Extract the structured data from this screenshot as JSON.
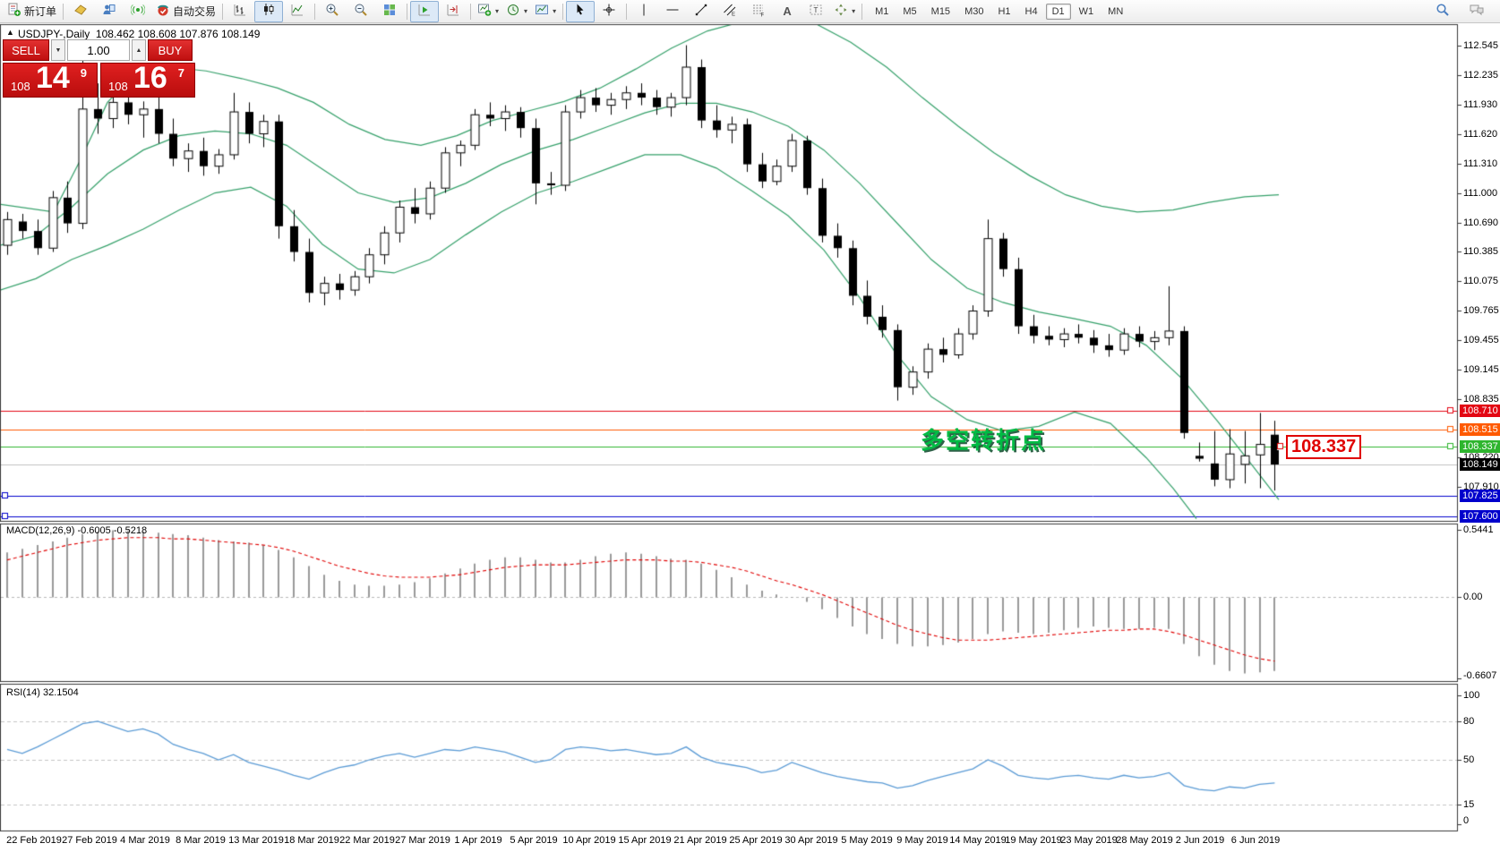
{
  "toolbar": {
    "new_order_label": "新订单",
    "autotrading_label": "自动交易",
    "timeframes": [
      "M1",
      "M5",
      "M15",
      "M30",
      "H1",
      "H4",
      "D1",
      "W1",
      "MN"
    ],
    "active_timeframe": "D1"
  },
  "chart": {
    "collapse_arrow": "▲",
    "symbol_title": "USDJPY-,Daily",
    "ohlc_values": "108.462 108.608 107.876 108.149",
    "trade_panel": {
      "sell_label": "SELL",
      "buy_label": "BUY",
      "volume": "1.00",
      "sell_small": "108",
      "sell_big": "14",
      "sell_sup": "9",
      "buy_small": "108",
      "buy_big": "16",
      "buy_sup": "7"
    },
    "annotation_text": "多空转折点",
    "annotation_color": "#00bb44",
    "callout_text": "108.337",
    "callout_color": "#e00000",
    "axis_ticks": [
      "112.545",
      "112.235",
      "111.930",
      "111.620",
      "111.310",
      "111.000",
      "110.690",
      "110.385",
      "110.075",
      "109.765",
      "109.455",
      "109.145",
      "108.835",
      "108.220",
      "107.910"
    ],
    "price_badges": [
      {
        "text": "108.710",
        "bg": "#e30613"
      },
      {
        "text": "108.515",
        "bg": "#ff5a00"
      },
      {
        "text": "108.337",
        "bg": "#2eb52e"
      },
      {
        "text": "108.149",
        "bg": "#000000"
      },
      {
        "text": "107.825",
        "bg": "#0000cc"
      },
      {
        "text": "107.600",
        "bg": "#0000cc"
      }
    ],
    "hlines": [
      {
        "price": 108.71,
        "color": "#e30613",
        "handle": "right"
      },
      {
        "price": 108.515,
        "color": "#ff5a00",
        "handle": "right"
      },
      {
        "price": 108.337,
        "color": "#2eb52e",
        "handle": "right"
      },
      {
        "price": 108.149,
        "color": "#c0c0c0",
        "handle": "none"
      },
      {
        "price": 107.825,
        "color": "#0000cc",
        "handle": "left"
      },
      {
        "price": 107.6,
        "color": "#0000cc",
        "handle": "left"
      }
    ],
    "bollinger_color": "#35a06a",
    "bands": {
      "upper": [
        [
          0,
          110.88
        ],
        [
          60,
          110.8
        ],
        [
          90,
          111.35
        ],
        [
          120,
          111.95
        ],
        [
          150,
          112.25
        ],
        [
          190,
          112.32
        ],
        [
          230,
          112.28
        ],
        [
          270,
          112.2
        ],
        [
          310,
          112.1
        ],
        [
          350,
          111.95
        ],
        [
          390,
          111.72
        ],
        [
          430,
          111.56
        ],
        [
          470,
          111.5
        ],
        [
          510,
          111.6
        ],
        [
          550,
          111.76
        ],
        [
          590,
          111.86
        ],
        [
          630,
          111.96
        ],
        [
          670,
          112.1
        ],
        [
          710,
          112.3
        ],
        [
          750,
          112.52
        ],
        [
          790,
          112.7
        ],
        [
          830,
          112.8
        ],
        [
          870,
          112.86
        ],
        [
          910,
          112.78
        ],
        [
          950,
          112.58
        ],
        [
          990,
          112.32
        ],
        [
          1030,
          112.0
        ],
        [
          1070,
          111.7
        ],
        [
          1110,
          111.42
        ],
        [
          1150,
          111.18
        ],
        [
          1190,
          110.98
        ],
        [
          1230,
          110.86
        ],
        [
          1270,
          110.8
        ],
        [
          1310,
          110.82
        ],
        [
          1350,
          110.9
        ],
        [
          1390,
          110.96
        ],
        [
          1428,
          110.98
        ]
      ],
      "middle": [
        [
          0,
          110.45
        ],
        [
          40,
          110.55
        ],
        [
          80,
          110.85
        ],
        [
          120,
          111.2
        ],
        [
          160,
          111.45
        ],
        [
          200,
          111.6
        ],
        [
          240,
          111.65
        ],
        [
          280,
          111.62
        ],
        [
          320,
          111.5
        ],
        [
          360,
          111.25
        ],
        [
          400,
          111.0
        ],
        [
          440,
          110.9
        ],
        [
          480,
          110.95
        ],
        [
          520,
          111.1
        ],
        [
          560,
          111.3
        ],
        [
          600,
          111.45
        ],
        [
          640,
          111.56
        ],
        [
          680,
          111.7
        ],
        [
          720,
          111.84
        ],
        [
          760,
          111.94
        ],
        [
          800,
          111.94
        ],
        [
          840,
          111.85
        ],
        [
          880,
          111.7
        ],
        [
          920,
          111.45
        ],
        [
          960,
          111.1
        ],
        [
          1000,
          110.7
        ],
        [
          1040,
          110.3
        ],
        [
          1080,
          110.0
        ],
        [
          1120,
          109.85
        ],
        [
          1160,
          109.75
        ],
        [
          1200,
          109.68
        ],
        [
          1240,
          109.6
        ],
        [
          1280,
          109.4
        ],
        [
          1320,
          109.05
        ],
        [
          1360,
          108.6
        ],
        [
          1400,
          108.12
        ],
        [
          1428,
          107.78
        ]
      ],
      "lower": [
        [
          0,
          109.98
        ],
        [
          40,
          110.1
        ],
        [
          80,
          110.3
        ],
        [
          120,
          110.45
        ],
        [
          160,
          110.62
        ],
        [
          200,
          110.82
        ],
        [
          240,
          111.0
        ],
        [
          280,
          111.06
        ],
        [
          320,
          110.86
        ],
        [
          360,
          110.46
        ],
        [
          400,
          110.2
        ],
        [
          440,
          110.16
        ],
        [
          480,
          110.3
        ],
        [
          520,
          110.56
        ],
        [
          560,
          110.8
        ],
        [
          600,
          111.0
        ],
        [
          640,
          111.12
        ],
        [
          680,
          111.26
        ],
        [
          720,
          111.4
        ],
        [
          760,
          111.4
        ],
        [
          800,
          111.26
        ],
        [
          840,
          111.02
        ],
        [
          880,
          110.76
        ],
        [
          920,
          110.4
        ],
        [
          960,
          109.9
        ],
        [
          1000,
          109.32
        ],
        [
          1040,
          108.86
        ],
        [
          1080,
          108.62
        ],
        [
          1120,
          108.5
        ],
        [
          1160,
          108.55
        ],
        [
          1200,
          108.7
        ],
        [
          1240,
          108.58
        ],
        [
          1280,
          108.22
        ],
        [
          1310,
          107.9
        ],
        [
          1336,
          107.58
        ]
      ]
    },
    "candles": [
      [
        110.45,
        110.8,
        110.35,
        110.72
      ],
      [
        110.7,
        110.78,
        110.52,
        110.6
      ],
      [
        110.6,
        110.72,
        110.35,
        110.42
      ],
      [
        110.42,
        111.02,
        110.38,
        110.95
      ],
      [
        110.95,
        111.12,
        110.58,
        110.68
      ],
      [
        110.68,
        112.5,
        110.62,
        111.88
      ],
      [
        111.88,
        112.15,
        111.62,
        111.78
      ],
      [
        111.78,
        112.08,
        111.68,
        111.95
      ],
      [
        111.95,
        112.05,
        111.72,
        111.82
      ],
      [
        111.82,
        111.96,
        111.58,
        111.88
      ],
      [
        111.88,
        112.02,
        111.52,
        111.62
      ],
      [
        111.62,
        111.78,
        111.28,
        111.36
      ],
      [
        111.36,
        111.52,
        111.22,
        111.44
      ],
      [
        111.44,
        111.58,
        111.18,
        111.28
      ],
      [
        111.28,
        111.46,
        111.2,
        111.4
      ],
      [
        111.4,
        112.05,
        111.35,
        111.85
      ],
      [
        111.85,
        111.95,
        111.52,
        111.62
      ],
      [
        111.62,
        111.82,
        111.48,
        111.75
      ],
      [
        111.75,
        111.82,
        110.52,
        110.65
      ],
      [
        110.65,
        110.82,
        110.28,
        110.38
      ],
      [
        110.38,
        110.52,
        109.85,
        109.95
      ],
      [
        109.95,
        110.12,
        109.82,
        110.05
      ],
      [
        110.05,
        110.15,
        109.88,
        109.98
      ],
      [
        109.98,
        110.18,
        109.92,
        110.12
      ],
      [
        110.12,
        110.42,
        110.05,
        110.35
      ],
      [
        110.35,
        110.65,
        110.25,
        110.58
      ],
      [
        110.58,
        110.92,
        110.48,
        110.85
      ],
      [
        110.85,
        111.05,
        110.68,
        110.78
      ],
      [
        110.78,
        111.12,
        110.72,
        111.05
      ],
      [
        111.05,
        111.48,
        111.0,
        111.42
      ],
      [
        111.42,
        111.55,
        111.28,
        111.5
      ],
      [
        111.5,
        111.88,
        111.45,
        111.82
      ],
      [
        111.82,
        111.95,
        111.7,
        111.78
      ],
      [
        111.78,
        111.92,
        111.65,
        111.85
      ],
      [
        111.85,
        111.9,
        111.58,
        111.68
      ],
      [
        111.68,
        111.78,
        110.88,
        111.1
      ],
      [
        111.1,
        111.22,
        110.98,
        111.08
      ],
      [
        111.08,
        111.92,
        111.02,
        111.85
      ],
      [
        111.85,
        112.08,
        111.78,
        112.0
      ],
      [
        112.0,
        112.1,
        111.85,
        111.92
      ],
      [
        111.92,
        112.05,
        111.82,
        111.98
      ],
      [
        111.98,
        112.12,
        111.88,
        112.05
      ],
      [
        112.05,
        112.15,
        111.92,
        112.0
      ],
      [
        112.0,
        112.08,
        111.82,
        111.9
      ],
      [
        111.9,
        112.05,
        111.8,
        112.0
      ],
      [
        112.0,
        112.55,
        111.92,
        112.32
      ],
      [
        112.32,
        112.4,
        111.68,
        111.76
      ],
      [
        111.76,
        111.92,
        111.58,
        111.66
      ],
      [
        111.66,
        111.8,
        111.52,
        111.72
      ],
      [
        111.72,
        111.78,
        111.22,
        111.3
      ],
      [
        111.3,
        111.42,
        111.05,
        111.12
      ],
      [
        111.12,
        111.35,
        111.08,
        111.28
      ],
      [
        111.28,
        111.62,
        111.22,
        111.55
      ],
      [
        111.55,
        111.6,
        110.98,
        111.05
      ],
      [
        111.05,
        111.15,
        110.48,
        110.55
      ],
      [
        110.55,
        110.68,
        110.32,
        110.42
      ],
      [
        110.42,
        110.5,
        109.82,
        109.92
      ],
      [
        109.92,
        110.08,
        109.62,
        109.7
      ],
      [
        109.7,
        109.82,
        109.48,
        109.56
      ],
      [
        109.56,
        109.62,
        108.82,
        108.96
      ],
      [
        108.96,
        109.18,
        108.88,
        109.12
      ],
      [
        109.12,
        109.42,
        109.05,
        109.36
      ],
      [
        109.36,
        109.48,
        109.22,
        109.3
      ],
      [
        109.3,
        109.58,
        109.26,
        109.52
      ],
      [
        109.52,
        109.82,
        109.46,
        109.76
      ],
      [
        109.76,
        110.72,
        109.7,
        110.52
      ],
      [
        110.52,
        110.58,
        110.12,
        110.2
      ],
      [
        110.2,
        110.32,
        109.52,
        109.6
      ],
      [
        109.6,
        109.72,
        109.42,
        109.5
      ],
      [
        109.5,
        109.6,
        109.4,
        109.46
      ],
      [
        109.46,
        109.58,
        109.38,
        109.52
      ],
      [
        109.52,
        109.62,
        109.42,
        109.48
      ],
      [
        109.48,
        109.56,
        109.32,
        109.4
      ],
      [
        109.4,
        109.52,
        109.28,
        109.35
      ],
      [
        109.35,
        109.58,
        109.3,
        109.52
      ],
      [
        109.52,
        109.6,
        109.38,
        109.44
      ],
      [
        109.44,
        109.55,
        109.35,
        109.48
      ],
      [
        109.48,
        110.02,
        109.4,
        109.55
      ],
      [
        109.55,
        109.6,
        108.42,
        108.48
      ],
      [
        108.24,
        108.38,
        108.18,
        108.21
      ],
      [
        108.16,
        108.5,
        107.92,
        107.99
      ],
      [
        107.99,
        108.52,
        107.9,
        108.26
      ],
      [
        108.15,
        108.5,
        107.95,
        108.24
      ],
      [
        108.25,
        108.69,
        107.9,
        108.36
      ],
      [
        108.462,
        108.608,
        107.876,
        108.149
      ]
    ]
  },
  "macd": {
    "label": "MACD(12,26,9) -0.6005 -0.5218",
    "axis": [
      "0.5441",
      "0.00",
      "-0.6607"
    ],
    "histogram_color": "#9a9a9a",
    "signal_color": "#e00000",
    "histogram": [
      0.36,
      0.39,
      0.42,
      0.45,
      0.48,
      0.51,
      0.53,
      0.54,
      0.54,
      0.53,
      0.52,
      0.51,
      0.5,
      0.48,
      0.46,
      0.45,
      0.44,
      0.42,
      0.38,
      0.32,
      0.25,
      0.18,
      0.13,
      0.1,
      0.09,
      0.09,
      0.1,
      0.12,
      0.15,
      0.19,
      0.23,
      0.27,
      0.3,
      0.32,
      0.32,
      0.3,
      0.28,
      0.28,
      0.3,
      0.33,
      0.35,
      0.36,
      0.35,
      0.33,
      0.31,
      0.3,
      0.27,
      0.22,
      0.16,
      0.1,
      0.05,
      0.02,
      0.0,
      -0.04,
      -0.1,
      -0.17,
      -0.24,
      -0.3,
      -0.34,
      -0.38,
      -0.4,
      -0.4,
      -0.39,
      -0.37,
      -0.34,
      -0.3,
      -0.28,
      -0.29,
      -0.3,
      -0.29,
      -0.27,
      -0.25,
      -0.24,
      -0.25,
      -0.26,
      -0.26,
      -0.25,
      -0.26,
      -0.38,
      -0.48,
      -0.55,
      -0.6,
      -0.62,
      -0.61,
      -0.6
    ],
    "signal": [
      0.3,
      0.33,
      0.36,
      0.39,
      0.42,
      0.44,
      0.46,
      0.47,
      0.48,
      0.48,
      0.48,
      0.47,
      0.47,
      0.46,
      0.45,
      0.44,
      0.43,
      0.42,
      0.4,
      0.37,
      0.33,
      0.29,
      0.25,
      0.22,
      0.19,
      0.17,
      0.16,
      0.16,
      0.16,
      0.17,
      0.18,
      0.2,
      0.22,
      0.24,
      0.25,
      0.26,
      0.26,
      0.26,
      0.27,
      0.28,
      0.29,
      0.3,
      0.3,
      0.3,
      0.29,
      0.29,
      0.28,
      0.26,
      0.24,
      0.21,
      0.17,
      0.13,
      0.1,
      0.06,
      0.02,
      -0.03,
      -0.08,
      -0.13,
      -0.18,
      -0.23,
      -0.27,
      -0.3,
      -0.33,
      -0.35,
      -0.35,
      -0.35,
      -0.34,
      -0.33,
      -0.32,
      -0.31,
      -0.3,
      -0.29,
      -0.28,
      -0.27,
      -0.27,
      -0.26,
      -0.26,
      -0.28,
      -0.31,
      -0.35,
      -0.39,
      -0.43,
      -0.47,
      -0.5,
      -0.52
    ]
  },
  "rsi": {
    "label": "RSI(14) 32.1504",
    "axis": [
      "100",
      "80",
      "50",
      "15",
      "0"
    ],
    "levels": [
      80,
      50,
      15
    ],
    "color": "#5b9bd5",
    "values": [
      58,
      55,
      60,
      66,
      72,
      78,
      80,
      76,
      72,
      74,
      70,
      62,
      58,
      55,
      50,
      54,
      48,
      45,
      42,
      38,
      35,
      40,
      44,
      46,
      50,
      53,
      55,
      52,
      55,
      58,
      57,
      60,
      58,
      56,
      52,
      48,
      50,
      58,
      60,
      59,
      57,
      58,
      56,
      54,
      55,
      60,
      52,
      48,
      46,
      44,
      40,
      42,
      48,
      44,
      40,
      37,
      35,
      33,
      32,
      28,
      30,
      34,
      37,
      40,
      43,
      50,
      45,
      38,
      36,
      35,
      37,
      38,
      36,
      35,
      38,
      36,
      37,
      40,
      30,
      27,
      26,
      29,
      28,
      31,
      32
    ]
  },
  "dates": {
    "labels": [
      "22 Feb 2019",
      "27 Feb 2019",
      "4 Mar 2019",
      "8 Mar 2019",
      "13 Mar 2019",
      "18 Mar 2019",
      "22 Mar 2019",
      "27 Mar 2019",
      "1 Apr 2019",
      "5 Apr 2019",
      "10 Apr 2019",
      "15 Apr 2019",
      "21 Apr 2019",
      "25 Apr 2019",
      "30 Apr 2019",
      "5 May 2019",
      "9 May 2019",
      "14 May 2019",
      "19 May 2019",
      "23 May 2019",
      "28 May 2019",
      "2 Jun 2019",
      "6 Jun 2019"
    ]
  }
}
